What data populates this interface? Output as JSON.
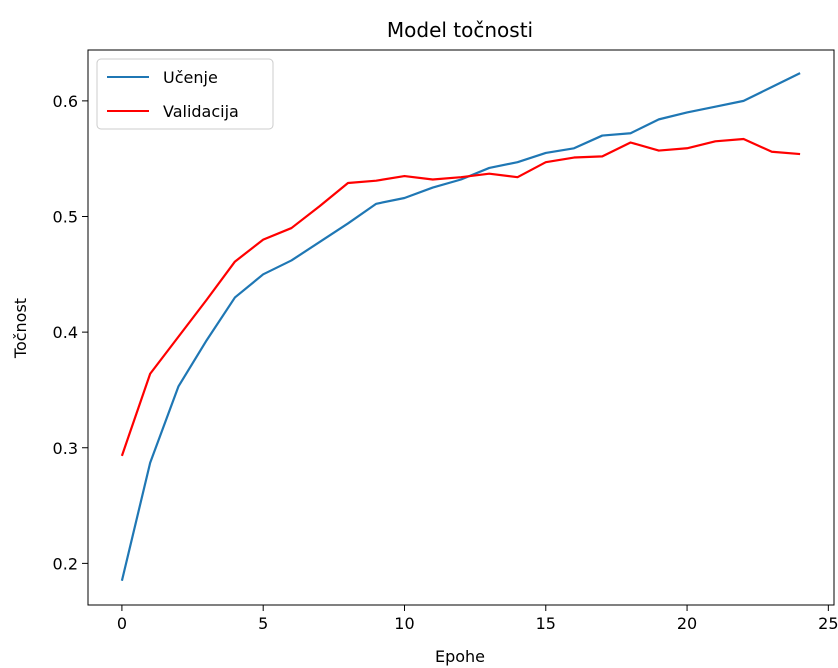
{
  "chart_data": {
    "type": "line",
    "title": "Model točnosti",
    "xlabel": "Epohe",
    "ylabel": "Točnost",
    "xlim": [
      -1.2,
      25.2
    ],
    "ylim": [
      0.164,
      0.644
    ],
    "xticks": [
      0,
      5,
      10,
      15,
      20,
      25
    ],
    "yticks": [
      0.2,
      0.3,
      0.4,
      0.5,
      0.6
    ],
    "grid": false,
    "legend_position": "top-left",
    "x": [
      0,
      1,
      2,
      3,
      4,
      5,
      6,
      7,
      8,
      9,
      10,
      11,
      12,
      13,
      14,
      15,
      16,
      17,
      18,
      19,
      20,
      21,
      22,
      23,
      24
    ],
    "series": [
      {
        "name": "Učenje",
        "color": "#1f77b4",
        "values": [
          0.185,
          0.287,
          0.353,
          0.393,
          0.43,
          0.45,
          0.462,
          0.478,
          0.494,
          0.511,
          0.516,
          0.525,
          0.532,
          0.542,
          0.547,
          0.555,
          0.559,
          0.57,
          0.572,
          0.584,
          0.59,
          0.595,
          0.6,
          0.612,
          0.624
        ]
      },
      {
        "name": "Validacija",
        "color": "#ff0000",
        "values": [
          0.293,
          0.364,
          0.396,
          0.428,
          0.461,
          0.48,
          0.49,
          0.509,
          0.529,
          0.531,
          0.535,
          0.532,
          0.534,
          0.537,
          0.534,
          0.547,
          0.551,
          0.552,
          0.564,
          0.557,
          0.559,
          0.565,
          0.567,
          0.556,
          0.554
        ]
      }
    ]
  }
}
